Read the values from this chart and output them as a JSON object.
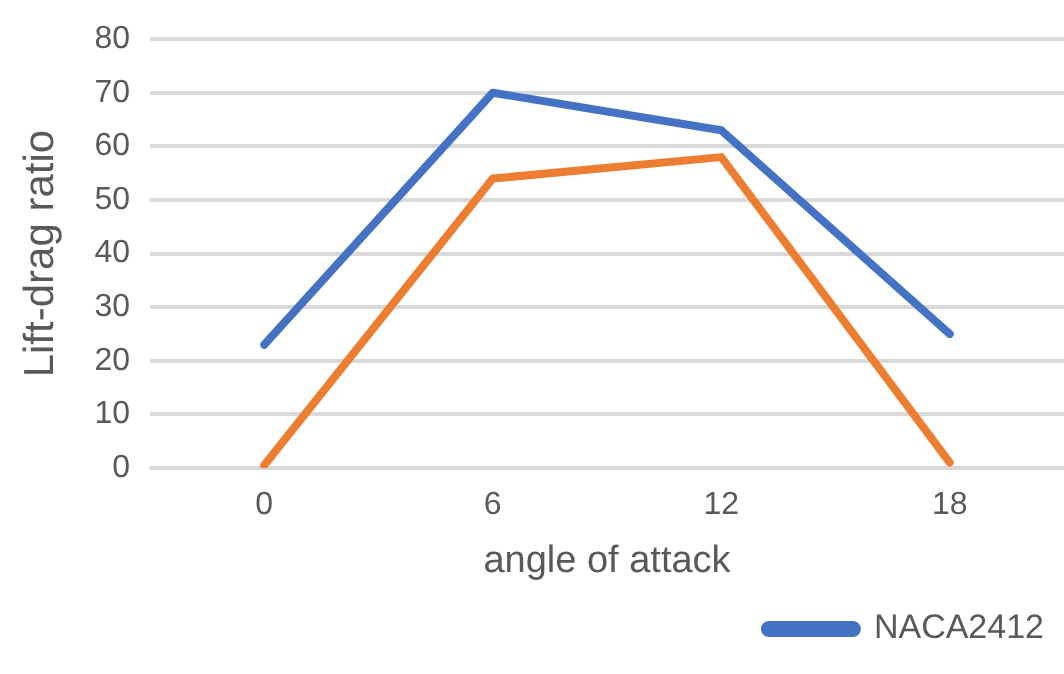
{
  "chart_data": {
    "type": "line",
    "ylabel": "Lift-drag ratio",
    "xlabel": "angle of attack",
    "categories": [
      "0",
      "6",
      "12",
      "18"
    ],
    "series": [
      {
        "name": "NACA2412",
        "color": "#4472c4",
        "values": [
          23,
          70,
          63,
          25
        ]
      },
      {
        "color": "#ed7d31",
        "values": [
          0.5,
          54,
          58,
          1
        ]
      }
    ],
    "ylim": [
      0,
      80
    ],
    "yticks": [
      0,
      10,
      20,
      30,
      40,
      50,
      60,
      70,
      80
    ],
    "grid": "y",
    "legend": "bottom right",
    "marker": "none",
    "line_style": "solid"
  }
}
